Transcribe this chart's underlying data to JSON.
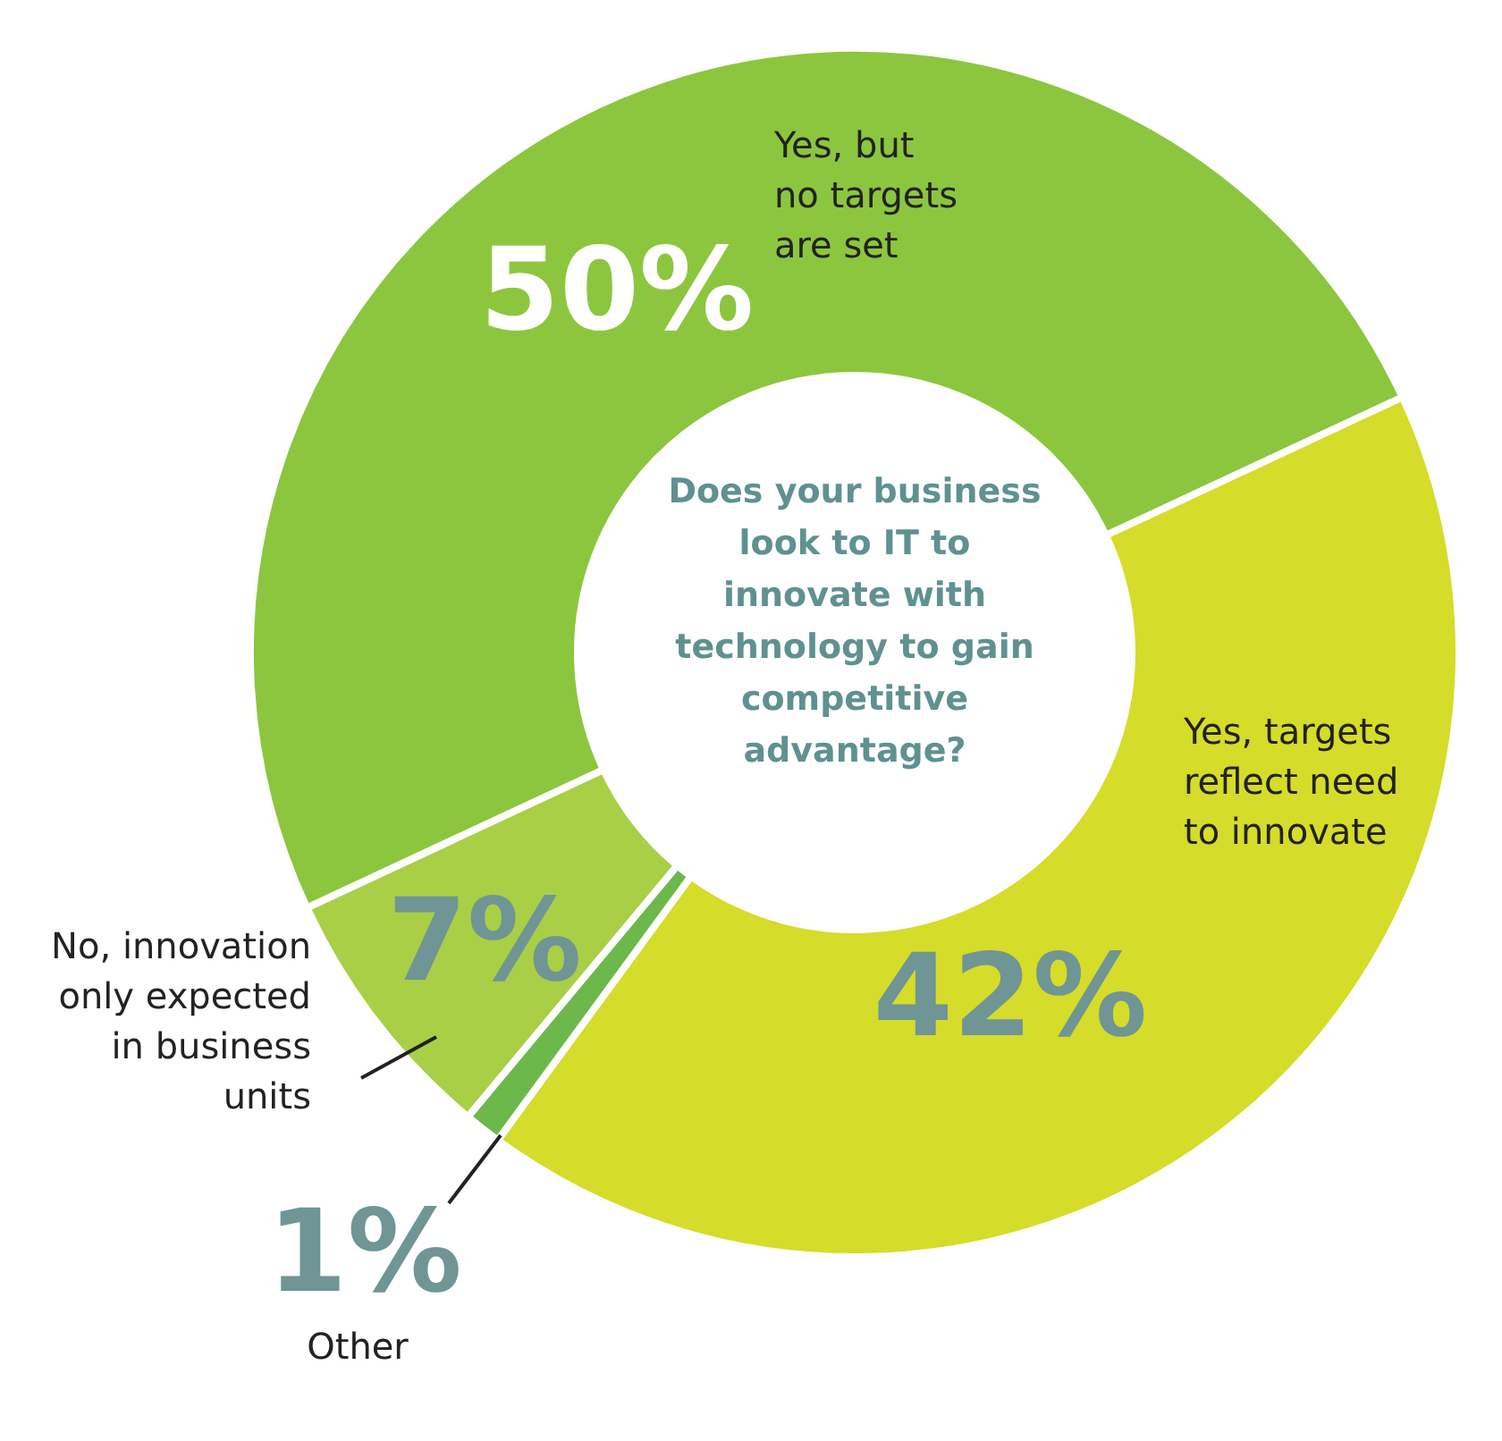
{
  "chart_data": {
    "type": "donut",
    "title": "Does your business look to IT to innovate with technology to gain competitive advantage?",
    "categories": [
      "Yes, but no targets are set",
      "Yes, targets reflect need to innovate",
      "Other",
      "No, innovation only expected in business units"
    ],
    "values": [
      50,
      42,
      1,
      7
    ],
    "value_labels": [
      "50%",
      "42%",
      "1%",
      "7%"
    ],
    "colors": [
      "#8cc63e",
      "#d5dc29",
      "#6cb84a",
      "#a9cf46"
    ]
  }
}
